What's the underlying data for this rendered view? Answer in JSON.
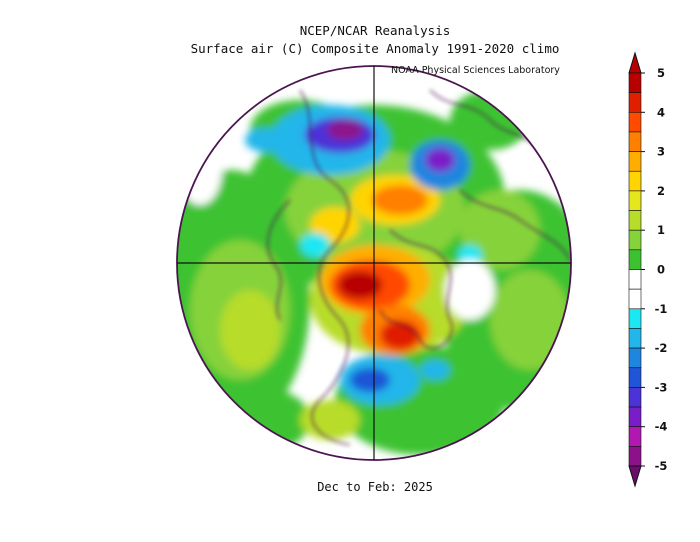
{
  "header": {
    "title_line1": "NCEP/NCAR Reanalysis",
    "title_line2": "Surface air (C) Composite Anomaly 1991-2020 climo",
    "credit": "NOAA Physical Sciences Laboratory"
  },
  "footer": {
    "period": "Dec to Feb: 2025"
  },
  "map": {
    "projection": "north-polar-stereographic",
    "variable": "Surface air temperature anomaly",
    "units": "C"
  },
  "colorbar": {
    "ticks": [
      "5",
      "4",
      "3",
      "2",
      "1",
      "0",
      "-1",
      "-2",
      "-3",
      "-4",
      "-5"
    ],
    "extend": "both",
    "colors": [
      "#6b0d6b",
      "#8d128a",
      "#b018b0",
      "#7a1cc8",
      "#4b33d8",
      "#1f55d6",
      "#1f86e0",
      "#22b6ea",
      "#1ee7f4",
      "#ffffff",
      "#ffffff",
      "#3cc230",
      "#86d23a",
      "#b7dc2a",
      "#e5e61b",
      "#ffd400",
      "#ffae00",
      "#ff7f00",
      "#ff4a00",
      "#e01e00",
      "#b80000"
    ]
  }
}
